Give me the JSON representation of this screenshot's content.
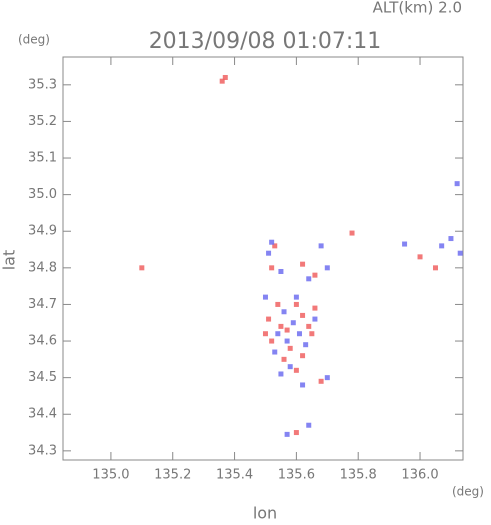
{
  "chart_data": {
    "type": "scatter",
    "title": "2013/09/08 01:07:11",
    "subtitle": "ALT(km) 2.0",
    "x_label": "lon",
    "y_label": "lat",
    "x_unit": "(deg)",
    "y_unit": "(deg)",
    "xlim": [
      134.845,
      136.139
    ],
    "ylim": [
      34.275,
      35.376
    ],
    "xticks": [
      {
        "value": 135,
        "label": "135.0"
      },
      135.2,
      135.4,
      135.6,
      135.8,
      {
        "value": 136,
        "label": "136.0"
      }
    ],
    "yticks": [
      34.3,
      34.4,
      34.5,
      34.6,
      34.7,
      34.8,
      34.9,
      {
        "value": 35,
        "label": "35.0"
      },
      35.1,
      35.2,
      35.3
    ],
    "series": [
      {
        "color": "#f06262",
        "x": [
          135.37,
          135.36,
          135.78,
          135.1,
          135.53,
          135.52,
          135.62,
          135.66,
          135.51,
          135.55,
          135.57,
          135.6,
          135.62,
          135.64,
          135.52,
          135.58,
          135.56,
          135.6,
          135.68,
          135.65,
          135.54,
          135.5,
          136.05,
          135.62,
          135.66,
          136.0,
          135.6
        ],
        "y": [
          35.32,
          35.31,
          34.895,
          34.8,
          34.86,
          34.8,
          34.81,
          34.78,
          34.66,
          34.64,
          34.63,
          34.7,
          34.67,
          34.64,
          34.6,
          34.58,
          34.55,
          34.52,
          34.49,
          34.62,
          34.7,
          34.62,
          34.8,
          34.56,
          34.69,
          34.83,
          34.35
        ]
      },
      {
        "color": "#6e6ef0",
        "x": [
          135.52,
          135.51,
          135.55,
          135.68,
          135.7,
          135.64,
          135.95,
          136.07,
          136.1,
          136.13,
          136.12,
          135.56,
          135.59,
          135.61,
          135.54,
          135.53,
          135.57,
          135.63,
          135.58,
          135.55,
          135.62,
          135.7,
          135.66,
          135.6,
          135.5,
          135.57,
          135.64
        ],
        "y": [
          34.87,
          34.84,
          34.79,
          34.86,
          34.8,
          34.77,
          34.865,
          34.86,
          34.88,
          34.84,
          35.03,
          34.68,
          34.65,
          34.62,
          34.62,
          34.57,
          34.6,
          34.59,
          34.53,
          34.51,
          34.48,
          34.5,
          34.66,
          34.72,
          34.72,
          34.345,
          34.37
        ]
      }
    ]
  }
}
